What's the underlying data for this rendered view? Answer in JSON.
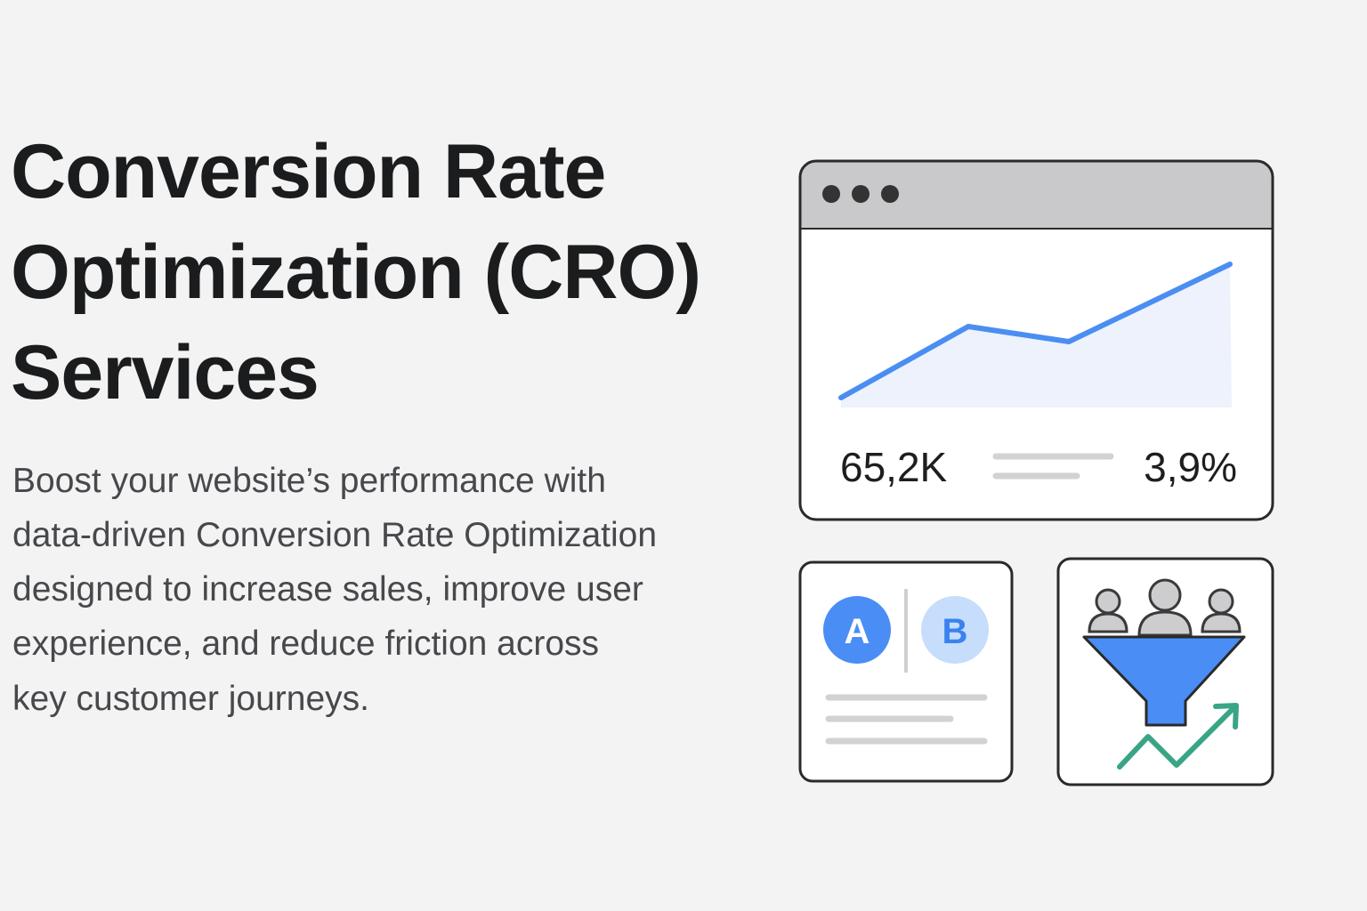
{
  "hero": {
    "title_lines": [
      "Conversion Rate",
      "Optimization (CRO)",
      "Services"
    ],
    "description_lines": [
      "Boost your website’s performance with",
      "data-driven Conversion Rate Optimization",
      "designed to increase sales, improve user",
      "experience, and reduce friction across",
      "key customer journeys."
    ]
  },
  "dashboard": {
    "visitors": "65,2K",
    "conversion_rate": "3,9%"
  },
  "ab_test": {
    "variant_a": "A",
    "variant_b": "B"
  }
}
